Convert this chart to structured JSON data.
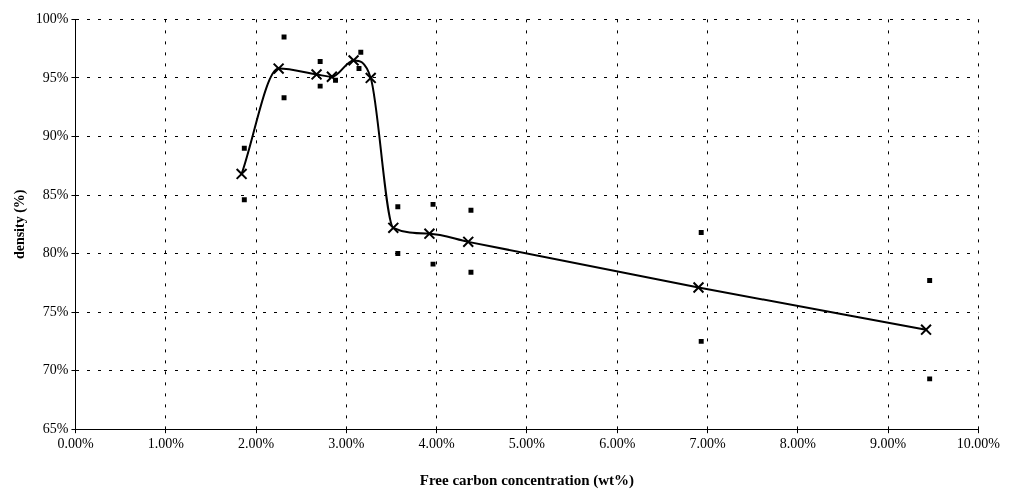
{
  "chart_data": {
    "type": "scatter",
    "xlabel": "Free carbon concentration (wt%)",
    "ylabel": "density (%)",
    "xlim": [
      0,
      10
    ],
    "xticks": [
      {
        "value": 0,
        "label": "0.00%"
      },
      {
        "value": 1,
        "label": "1.00%"
      },
      {
        "value": 2,
        "label": "2.00%"
      },
      {
        "value": 3,
        "label": "3.00%"
      },
      {
        "value": 4,
        "label": "4.00%"
      },
      {
        "value": 5,
        "label": "5.00%"
      },
      {
        "value": 6,
        "label": "6.00%"
      },
      {
        "value": 7,
        "label": "7.00%"
      },
      {
        "value": 8,
        "label": "8.00%"
      },
      {
        "value": 9,
        "label": "9.00%"
      },
      {
        "value": 10,
        "label": "10.00%"
      }
    ],
    "ylim": [
      65,
      100
    ],
    "yticks": [
      {
        "value": 65,
        "label": "65%"
      },
      {
        "value": 70,
        "label": "70%"
      },
      {
        "value": 75,
        "label": "75%"
      },
      {
        "value": 80,
        "label": "80%"
      },
      {
        "value": 85,
        "label": "85%"
      },
      {
        "value": 90,
        "label": "90%"
      },
      {
        "value": 95,
        "label": "95%"
      },
      {
        "value": 100,
        "label": "100%"
      }
    ],
    "grid": true,
    "legend": false,
    "series": [
      {
        "type": "line",
        "color": "#000000",
        "marker": "cross",
        "line_style": "solid",
        "x": [
          1.84,
          2.25,
          2.67,
          2.84,
          3.08,
          3.27,
          3.52,
          3.92,
          4.35,
          6.9,
          9.42
        ],
        "values": [
          86.8,
          95.8,
          95.3,
          95.1,
          96.5,
          95.0,
          82.2,
          81.7,
          81.0,
          77.1,
          73.5
        ]
      },
      {
        "type": "scatter",
        "color": "#000000",
        "marker": "square",
        "x": [
          1.87,
          2.31,
          2.71,
          3.16,
          3.57,
          3.96,
          4.38,
          6.93,
          9.46,
          1.87,
          2.31,
          2.71,
          2.88,
          3.14,
          3.57,
          3.96,
          4.38,
          6.93,
          9.46
        ],
        "values": [
          89.0,
          98.5,
          96.4,
          97.2,
          84.0,
          84.2,
          83.7,
          81.8,
          77.7,
          84.6,
          93.3,
          94.3,
          94.8,
          95.8,
          80.0,
          79.1,
          78.4,
          72.5,
          69.3
        ]
      }
    ]
  }
}
